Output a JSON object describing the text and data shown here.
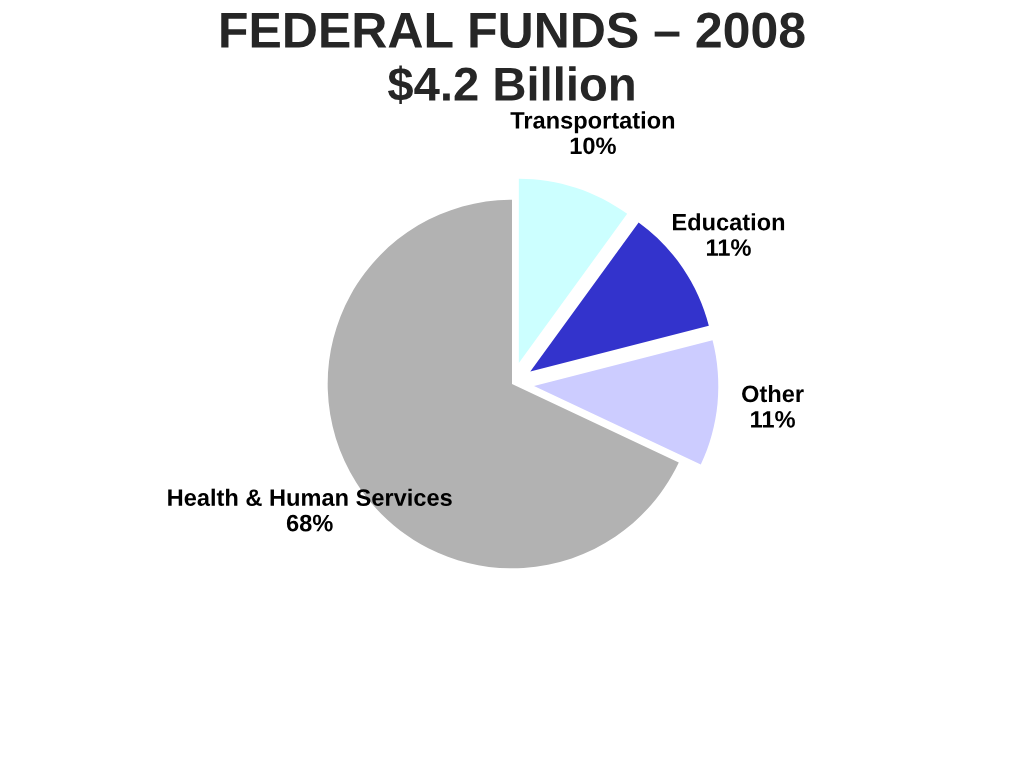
{
  "chart_data": {
    "type": "pie",
    "title": "FEDERAL FUNDS – 2008",
    "subtitle": "$4.2 Billion",
    "categories": [
      "Transportation",
      "Education",
      "Other",
      "Health & Human Services"
    ],
    "values": [
      10,
      11,
      11,
      68
    ],
    "value_labels": [
      "10%",
      "11%",
      "11%",
      "68%"
    ],
    "colors": [
      "#ccffff",
      "#3333cc",
      "#ccccff",
      "#b2b2b2"
    ],
    "legend": false
  }
}
